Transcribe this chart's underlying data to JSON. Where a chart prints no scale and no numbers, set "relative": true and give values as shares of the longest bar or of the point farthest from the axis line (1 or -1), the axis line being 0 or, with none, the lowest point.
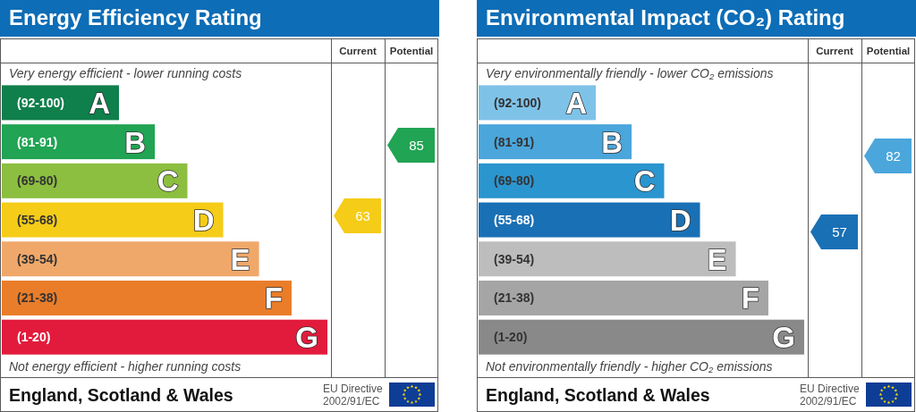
{
  "chart_data": [
    {
      "type": "bar",
      "orientation": "horizontal",
      "relative": true,
      "title": "Energy Efficiency Rating",
      "categories": [
        "A",
        "B",
        "C",
        "D",
        "E",
        "F",
        "G"
      ],
      "values": [
        0.36,
        0.47,
        0.57,
        0.68,
        0.79,
        0.89,
        1
      ],
      "colors": [
        "#0f7f4b",
        "#21a453",
        "#8cbe3f",
        "#f5cc17",
        "#f0a86a",
        "#ea7d29",
        "#e21b3c"
      ],
      "annotations": [
        "Very energy efficient - lower running costs",
        "Not energy efficient - higher running costs",
        "England, Scotland & Wales",
        "EU Directive 2002/91/EC",
        "Current",
        "Potential",
        "(92-100)",
        "(81-91)",
        "(69-80)",
        "(55-68)",
        "(39-54)",
        "(21-38)",
        "(1-20)",
        "63",
        "85"
      ]
    },
    {
      "type": "bar",
      "orientation": "horizontal",
      "relative": true,
      "title": "Environmental Impact (CO₂) Rating",
      "categories": [
        "A",
        "B",
        "C",
        "D",
        "E",
        "F",
        "G"
      ],
      "values": [
        0.36,
        0.47,
        0.57,
        0.68,
        0.79,
        0.89,
        1
      ],
      "colors": [
        "#7fc2e8",
        "#4ba6db",
        "#2b95cf",
        "#1a70b5",
        "#bdbdbd",
        "#a5a5a5",
        "#898989"
      ],
      "annotations": [
        "Very environmentally friendly - lower CO₂ emissions",
        "Not environmentally friendly - higher CO₂ emissions",
        "England, Scotland & Wales",
        "EU Directive 2002/91/EC",
        "Current",
        "Potential",
        "(92-100)",
        "(81-91)",
        "(69-80)",
        "(55-68)",
        "(39-54)",
        "(21-38)",
        "(1-20)",
        "57",
        "82"
      ]
    }
  ]
}
